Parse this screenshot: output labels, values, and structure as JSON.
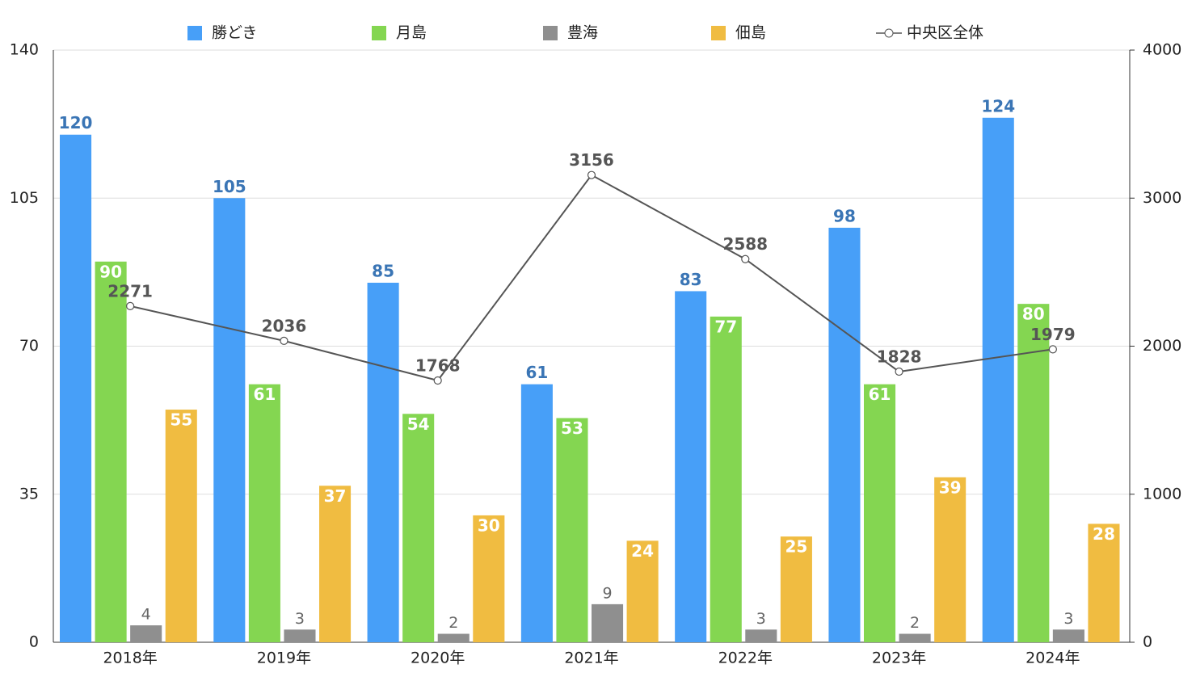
{
  "chart_data": {
    "type": "bar",
    "categories": [
      "2018年",
      "2019年",
      "2020年",
      "2021年",
      "2022年",
      "2023年",
      "2024年"
    ],
    "series": [
      {
        "name": "勝どき",
        "color": "#479ff8",
        "values": [
          120,
          105,
          85,
          61,
          83,
          98,
          124
        ]
      },
      {
        "name": "月島",
        "color": "#84d651",
        "values": [
          90,
          61,
          54,
          53,
          77,
          61,
          80
        ]
      },
      {
        "name": "豊海",
        "color": "#8f8f8f",
        "values": [
          4,
          3,
          2,
          9,
          3,
          2,
          3
        ]
      },
      {
        "name": "佃島",
        "color": "#f0bc41",
        "values": [
          55,
          37,
          30,
          24,
          25,
          39,
          28
        ]
      },
      {
        "name": "中央区全体",
        "color": "#555555",
        "type": "line",
        "axis": "y2",
        "values": [
          2271,
          2036,
          1768,
          3156,
          2588,
          1828,
          1979
        ]
      }
    ],
    "ylim": [
      0,
      140
    ],
    "yticks": [
      0,
      35,
      70,
      105,
      140
    ],
    "y2lim": [
      0,
      4000
    ],
    "y2ticks": [
      0,
      1000,
      2000,
      3000,
      4000
    ],
    "grid": true,
    "legend": "top"
  }
}
